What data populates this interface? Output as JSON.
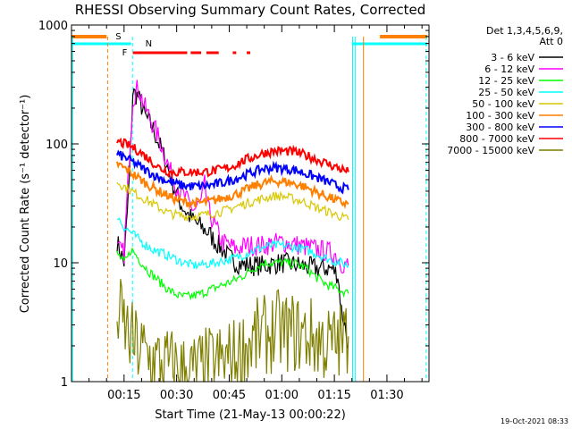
{
  "chart_data": {
    "type": "line",
    "title": "RHESSI Observing Summary Count Rates, Corrected",
    "xlabel": "Start Time (21-May-13 00:00:22)",
    "ylabel": "Corrected Count Rate (s⁻¹ detector⁻¹)",
    "y_scale": "log",
    "ylim": [
      1,
      1000
    ],
    "xlim_minutes": [
      0,
      102
    ],
    "x_tick_labels": [
      "00:15",
      "00:30",
      "00:45",
      "01:00",
      "01:15",
      "01:30"
    ],
    "x_ticks_minutes": [
      15,
      30,
      45,
      60,
      75,
      90
    ],
    "y_tick_labels": [
      "1",
      "10",
      "100",
      "1000"
    ],
    "legend_header": [
      "Det 1,3,4,5,6,9,",
      "Att 0"
    ],
    "timestamp": "19-Oct-2021 08:33",
    "flags": {
      "S": {
        "label": "S",
        "color": "#ff7f00",
        "start_min": 0,
        "end_min": 10
      },
      "N": {
        "label": "N",
        "color": "#00ffff",
        "start_min": 0,
        "end_min": 17
      },
      "F": {
        "label": "F",
        "color": "#ff0000",
        "segments_min": [
          [
            17.5,
            33
          ],
          [
            34,
            37
          ],
          [
            38.5,
            42
          ],
          [
            46,
            47
          ],
          [
            50,
            51
          ]
        ]
      }
    },
    "series": [
      {
        "name": "3 - 6 keV",
        "color": "#000000",
        "points": [
          [
            13,
            15
          ],
          [
            15,
            10
          ],
          [
            16.5,
            50
          ],
          [
            17.5,
            270
          ],
          [
            19,
            250
          ],
          [
            21,
            170
          ],
          [
            23,
            140
          ],
          [
            25,
            100
          ],
          [
            27,
            70
          ],
          [
            29,
            45
          ],
          [
            31,
            32
          ],
          [
            33,
            26
          ],
          [
            35,
            22
          ],
          [
            37,
            20
          ],
          [
            39,
            18
          ],
          [
            41,
            15
          ],
          [
            43,
            13
          ],
          [
            45,
            11
          ],
          [
            47,
            10
          ],
          [
            50,
            9.5
          ],
          [
            55,
            9.5
          ],
          [
            60,
            10
          ],
          [
            65,
            9.5
          ],
          [
            70,
            9
          ],
          [
            74,
            9
          ],
          [
            76,
            8
          ],
          [
            77,
            4
          ],
          [
            78,
            3
          ],
          [
            79,
            2
          ]
        ]
      },
      {
        "name": "6 - 12 keV",
        "color": "#ff00ff",
        "points": [
          [
            13,
            13
          ],
          [
            15,
            12
          ],
          [
            16.5,
            80
          ],
          [
            17.5,
            240
          ],
          [
            19,
            300
          ],
          [
            21,
            200
          ],
          [
            23,
            150
          ],
          [
            25,
            110
          ],
          [
            27,
            75
          ],
          [
            29,
            50
          ],
          [
            31,
            40
          ],
          [
            33,
            33
          ],
          [
            35,
            28
          ],
          [
            37,
            32
          ],
          [
            38,
            45
          ],
          [
            39,
            28
          ],
          [
            41,
            20
          ],
          [
            43,
            15
          ],
          [
            45,
            14
          ],
          [
            47,
            13
          ],
          [
            50,
            14
          ],
          [
            55,
            14
          ],
          [
            60,
            15
          ],
          [
            65,
            14
          ],
          [
            70,
            13
          ],
          [
            75,
            12
          ],
          [
            77,
            10
          ],
          [
            79,
            9.5
          ]
        ]
      },
      {
        "name": "12 - 25 keV",
        "color": "#00ff00",
        "points": [
          [
            13,
            12
          ],
          [
            15,
            10
          ],
          [
            16,
            11
          ],
          [
            17,
            13
          ],
          [
            18,
            12
          ],
          [
            20,
            10
          ],
          [
            22,
            8.5
          ],
          [
            25,
            7
          ],
          [
            28,
            5.8
          ],
          [
            31,
            5.2
          ],
          [
            34,
            5.2
          ],
          [
            37,
            5.5
          ],
          [
            40,
            6
          ],
          [
            43,
            6.5
          ],
          [
            46,
            7
          ],
          [
            49,
            7.8
          ],
          [
            52,
            9
          ],
          [
            55,
            10
          ],
          [
            58,
            10
          ],
          [
            61,
            10
          ],
          [
            64,
            9.8
          ],
          [
            67,
            9
          ],
          [
            70,
            7.5
          ],
          [
            73,
            6.5
          ],
          [
            76,
            6
          ],
          [
            79,
            5.5
          ]
        ]
      },
      {
        "name": "25 - 50 keV",
        "color": "#00ffff",
        "points": [
          [
            13,
            25
          ],
          [
            15,
            20
          ],
          [
            17,
            18
          ],
          [
            20,
            15
          ],
          [
            23,
            13
          ],
          [
            26,
            12
          ],
          [
            29,
            11
          ],
          [
            32,
            10
          ],
          [
            35,
            9.5
          ],
          [
            38,
            9.7
          ],
          [
            41,
            10
          ],
          [
            44,
            10.5
          ],
          [
            47,
            11
          ],
          [
            50,
            12
          ],
          [
            53,
            13
          ],
          [
            56,
            13.8
          ],
          [
            59,
            14
          ],
          [
            62,
            13.8
          ],
          [
            65,
            13.3
          ],
          [
            68,
            12.5
          ],
          [
            71,
            11.5
          ],
          [
            74,
            10.5
          ],
          [
            77,
            10
          ],
          [
            79,
            9.5
          ]
        ]
      },
      {
        "name": "50 - 100 keV",
        "color": "#d7c800",
        "points": [
          [
            13,
            48
          ],
          [
            16,
            42
          ],
          [
            19,
            37
          ],
          [
            22,
            33
          ],
          [
            25,
            29
          ],
          [
            28,
            26
          ],
          [
            31,
            25
          ],
          [
            34,
            24.5
          ],
          [
            37,
            25
          ],
          [
            40,
            26
          ],
          [
            43,
            27
          ],
          [
            46,
            29
          ],
          [
            49,
            31
          ],
          [
            52,
            33
          ],
          [
            55,
            35
          ],
          [
            58,
            36.5
          ],
          [
            61,
            36
          ],
          [
            64,
            34
          ],
          [
            67,
            32
          ],
          [
            70,
            29
          ],
          [
            73,
            27
          ],
          [
            76,
            25
          ],
          [
            79,
            23
          ]
        ]
      },
      {
        "name": "100 - 300 keV",
        "color": "#ff7f00",
        "points": [
          [
            13,
            68
          ],
          [
            16,
            60
          ],
          [
            19,
            52
          ],
          [
            22,
            45
          ],
          [
            25,
            40
          ],
          [
            28,
            36
          ],
          [
            31,
            33
          ],
          [
            34,
            32
          ],
          [
            37,
            32
          ],
          [
            40,
            33
          ],
          [
            43,
            35
          ],
          [
            46,
            37
          ],
          [
            49,
            40
          ],
          [
            52,
            44
          ],
          [
            55,
            47
          ],
          [
            58,
            48.5
          ],
          [
            61,
            48
          ],
          [
            64,
            46
          ],
          [
            67,
            43
          ],
          [
            70,
            39
          ],
          [
            73,
            36
          ],
          [
            76,
            33
          ],
          [
            79,
            31
          ]
        ]
      },
      {
        "name": "300 - 800 keV",
        "color": "#0000ff",
        "points": [
          [
            13,
            82
          ],
          [
            16,
            75
          ],
          [
            19,
            66
          ],
          [
            22,
            58
          ],
          [
            25,
            52
          ],
          [
            28,
            48
          ],
          [
            31,
            45
          ],
          [
            34,
            44
          ],
          [
            37,
            44
          ],
          [
            40,
            45
          ],
          [
            43,
            47
          ],
          [
            46,
            50
          ],
          [
            49,
            54
          ],
          [
            52,
            58
          ],
          [
            55,
            62
          ],
          [
            58,
            63
          ],
          [
            61,
            62
          ],
          [
            64,
            60
          ],
          [
            67,
            56
          ],
          [
            70,
            52
          ],
          [
            73,
            48
          ],
          [
            76,
            44
          ],
          [
            79,
            41
          ]
        ]
      },
      {
        "name": "800 - 7000 keV",
        "color": "#ff0000",
        "points": [
          [
            13,
            105
          ],
          [
            16,
            98
          ],
          [
            19,
            88
          ],
          [
            22,
            75
          ],
          [
            25,
            63
          ],
          [
            28,
            58
          ],
          [
            31,
            58
          ],
          [
            34,
            58
          ],
          [
            37,
            58
          ],
          [
            40,
            59
          ],
          [
            43,
            61
          ],
          [
            46,
            65
          ],
          [
            49,
            72
          ],
          [
            52,
            78
          ],
          [
            55,
            84
          ],
          [
            58,
            87
          ],
          [
            61,
            87
          ],
          [
            64,
            85
          ],
          [
            67,
            80
          ],
          [
            70,
            74
          ],
          [
            73,
            68
          ],
          [
            76,
            63
          ],
          [
            79,
            58
          ]
        ]
      },
      {
        "name": "7000 - 15000 keV",
        "color": "#7f7f00",
        "points": [
          [
            13,
            4
          ],
          [
            15,
            3
          ],
          [
            17,
            2.2
          ],
          [
            20,
            1.8
          ],
          [
            23,
            1.5
          ],
          [
            26,
            1.4
          ],
          [
            29,
            1.3
          ],
          [
            32,
            1.2
          ],
          [
            35,
            1.2
          ],
          [
            38,
            1.3
          ],
          [
            41,
            1.4
          ],
          [
            44,
            1.5
          ],
          [
            47,
            1.6
          ],
          [
            50,
            2
          ],
          [
            53,
            2.3
          ],
          [
            56,
            2.5
          ],
          [
            59,
            2.7
          ],
          [
            62,
            2.6
          ],
          [
            65,
            2.5
          ],
          [
            68,
            2.4
          ],
          [
            71,
            2.2
          ],
          [
            74,
            2
          ],
          [
            77,
            2.2
          ],
          [
            79,
            2.4
          ]
        ]
      }
    ]
  }
}
